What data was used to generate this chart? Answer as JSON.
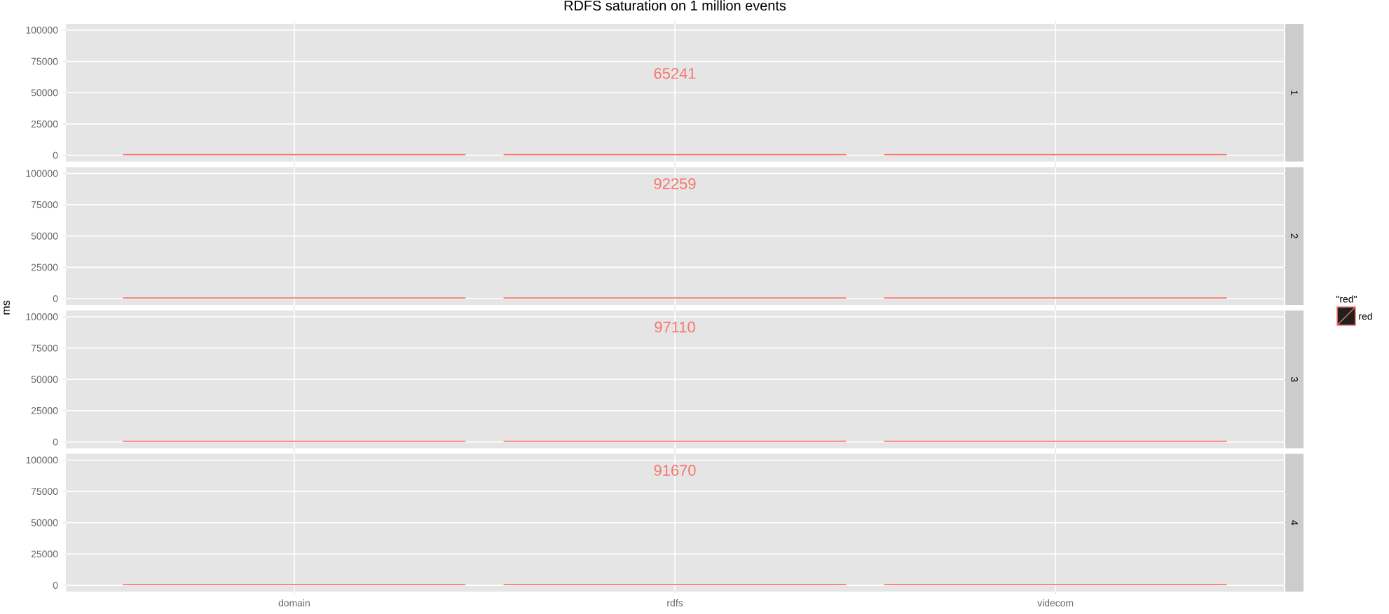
{
  "chart_data": [
    {
      "type": "bar",
      "title": "RDFS saturation on 1 million events",
      "categories": [
        null,
        null,
        null
      ],
      "series": [
        {
          "color": "#f8766d",
          "values": [
            1000,
            1000,
            1000
          ]
        }
      ],
      "ylim": [
        -5000,
        105000
      ],
      "yticks": [
        0,
        25000,
        50000,
        75000,
        100000
      ],
      "grid": true,
      "tick_labels": "y",
      "annotations": [
        "1",
        "65241"
      ]
    },
    {
      "type": "bar",
      "ylabel": "ms",
      "legend": "right",
      "legend_title": "\"red\"",
      "categories": [
        null,
        null,
        null
      ],
      "series": [
        {
          "name": "red",
          "color": "#f8766d",
          "values": [
            1000,
            1000,
            1000
          ]
        }
      ],
      "ylim": [
        -5000,
        105000
      ],
      "yticks": [
        0,
        25000,
        50000,
        75000,
        100000
      ],
      "grid": true,
      "tick_labels": "y",
      "annotations": [
        "2",
        "92259"
      ]
    },
    {
      "type": "bar",
      "categories": [
        null,
        null,
        null
      ],
      "series": [
        {
          "color": "#f8766d",
          "values": [
            1000,
            1000,
            1000
          ]
        }
      ],
      "ylim": [
        -5000,
        105000
      ],
      "yticks": [
        0,
        25000,
        50000,
        75000,
        100000
      ],
      "grid": true,
      "tick_labels": "y",
      "annotations": [
        "3",
        "97110"
      ]
    },
    {
      "type": "bar",
      "categories": [
        "domain",
        "rdfs",
        "videcom"
      ],
      "series": [
        {
          "color": "#f8766d",
          "values": [
            1000,
            1000,
            1000
          ]
        }
      ],
      "ylim": [
        -5000,
        105000
      ],
      "yticks": [
        0,
        25000,
        50000,
        75000,
        100000
      ],
      "grid": true,
      "annotations": [
        "4",
        "91670"
      ]
    }
  ]
}
